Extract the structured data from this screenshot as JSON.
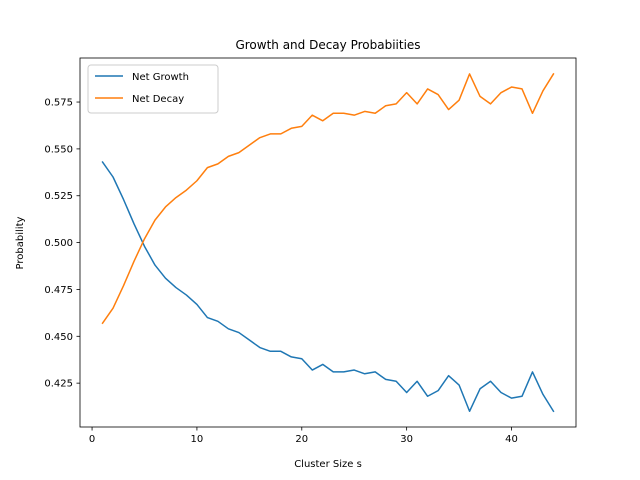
{
  "chart_data": {
    "type": "line",
    "title": "Growth and Decay Probabiities",
    "xlabel": "Cluster Size s",
    "ylabel": "Probability",
    "xlim": [
      -1.15,
      46.15
    ],
    "ylim": [
      0.4016,
      0.5985
    ],
    "xticks": [
      0,
      10,
      20,
      30,
      40
    ],
    "yticks": [
      0.425,
      0.45,
      0.475,
      0.5,
      0.525,
      0.55,
      0.575
    ],
    "ytick_labels": [
      "0.425",
      "0.450",
      "0.475",
      "0.500",
      "0.525",
      "0.550",
      "0.575"
    ],
    "legend_position": "top-left",
    "grid": false,
    "series": [
      {
        "name": "Net Growth",
        "color": "#1f77b4",
        "x": [
          1,
          2,
          3,
          4,
          5,
          6,
          7,
          8,
          9,
          10,
          11,
          12,
          13,
          14,
          15,
          16,
          17,
          18,
          19,
          20,
          21,
          22,
          23,
          24,
          25,
          26,
          27,
          28,
          29,
          30,
          31,
          32,
          33,
          34,
          35,
          36,
          37,
          38,
          39,
          40,
          41,
          42,
          43,
          44
        ],
        "y": [
          0.543,
          0.535,
          0.523,
          0.51,
          0.498,
          0.488,
          0.481,
          0.476,
          0.472,
          0.467,
          0.46,
          0.458,
          0.454,
          0.452,
          0.448,
          0.444,
          0.442,
          0.442,
          0.439,
          0.438,
          0.432,
          0.435,
          0.431,
          0.431,
          0.432,
          0.43,
          0.431,
          0.427,
          0.426,
          0.42,
          0.426,
          0.418,
          0.421,
          0.429,
          0.424,
          0.41,
          0.422,
          0.426,
          0.42,
          0.417,
          0.418,
          0.431,
          0.419,
          0.41
        ]
      },
      {
        "name": "Net Decay",
        "color": "#ff7f0e",
        "x": [
          1,
          2,
          3,
          4,
          5,
          6,
          7,
          8,
          9,
          10,
          11,
          12,
          13,
          14,
          15,
          16,
          17,
          18,
          19,
          20,
          21,
          22,
          23,
          24,
          25,
          26,
          27,
          28,
          29,
          30,
          31,
          32,
          33,
          34,
          35,
          36,
          37,
          38,
          39,
          40,
          41,
          42,
          43,
          44
        ],
        "y": [
          0.457,
          0.465,
          0.477,
          0.49,
          0.502,
          0.512,
          0.519,
          0.524,
          0.528,
          0.533,
          0.54,
          0.542,
          0.546,
          0.548,
          0.552,
          0.556,
          0.558,
          0.558,
          0.561,
          0.562,
          0.568,
          0.565,
          0.569,
          0.569,
          0.568,
          0.57,
          0.569,
          0.573,
          0.574,
          0.58,
          0.574,
          0.582,
          0.579,
          0.571,
          0.576,
          0.59,
          0.578,
          0.574,
          0.58,
          0.583,
          0.582,
          0.569,
          0.581,
          0.59
        ]
      }
    ]
  }
}
